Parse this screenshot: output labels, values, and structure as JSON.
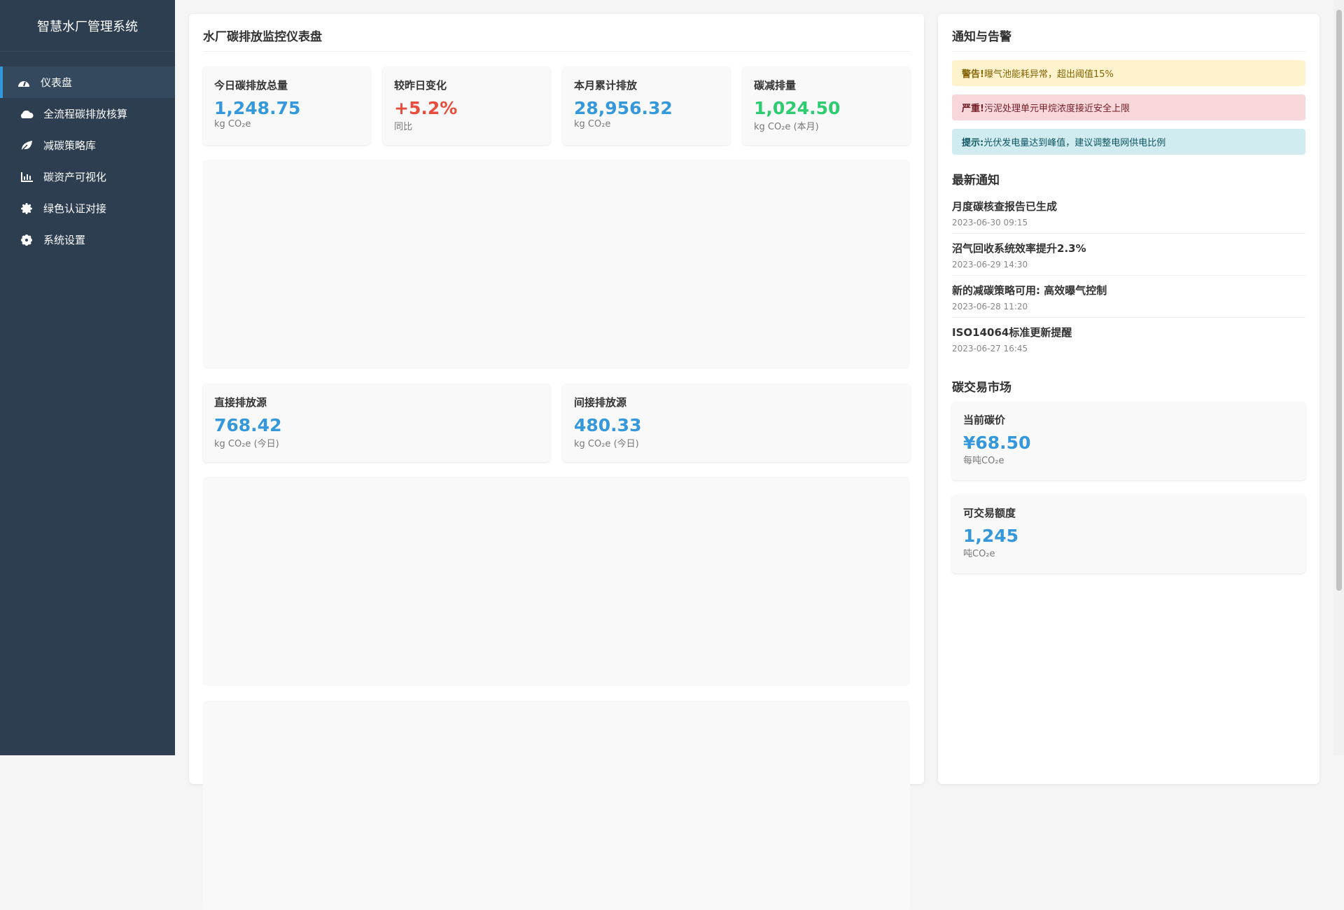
{
  "sidebar": {
    "title": "智慧水厂管理系统",
    "items": [
      {
        "label": "仪表盘",
        "icon": "dashboard-icon",
        "active": true
      },
      {
        "label": "全流程碳排放核算",
        "icon": "cloud-icon"
      },
      {
        "label": "减碳策略库",
        "icon": "leaf-icon"
      },
      {
        "label": "碳资产可视化",
        "icon": "bar-chart-icon"
      },
      {
        "label": "绿色认证对接",
        "icon": "certificate-icon"
      },
      {
        "label": "系统设置",
        "icon": "gear-icon"
      }
    ]
  },
  "main": {
    "title": "水厂碳排放监控仪表盘",
    "stats": [
      {
        "label": "今日碳排放总量",
        "value": "1,248.75",
        "unit": "kg CO₂e",
        "color": "#3498db"
      },
      {
        "label": "较昨日变化",
        "value": "+5.2%",
        "unit": "同比",
        "color": "#e74c3c"
      },
      {
        "label": "本月累计排放",
        "value": "28,956.32",
        "unit": "kg CO₂e",
        "color": "#3498db"
      },
      {
        "label": "碳减排量",
        "value": "1,024.50",
        "unit": "kg CO₂e (本月)",
        "color": "#2ecc71"
      }
    ],
    "sources": [
      {
        "label": "直接排放源",
        "value": "768.42",
        "unit": "kg CO₂e (今日)"
      },
      {
        "label": "间接排放源",
        "value": "480.33",
        "unit": "kg CO₂e (今日)"
      }
    ]
  },
  "right": {
    "title": "通知与告警",
    "alerts": [
      {
        "strong": "警告!",
        "text": " 曝气池能耗异常，超出阈值15%"
      },
      {
        "strong": "严重!",
        "text": " 污泥处理单元甲烷浓度接近安全上限"
      },
      {
        "strong": "提示:",
        "text": " 光伏发电量达到峰值，建议调整电网供电比例"
      }
    ],
    "notices_title": "最新通知",
    "notices": [
      {
        "title": "月度碳核查报告已生成",
        "time": "2023-06-30 09:15"
      },
      {
        "title": "沼气回收系统效率提升2.3%",
        "time": "2023-06-29 14:30"
      },
      {
        "title": "新的减碳策略可用: 高效曝气控制",
        "time": "2023-06-28 11:20"
      },
      {
        "title": "ISO14064标准更新提醒",
        "time": "2023-06-27 16:45"
      }
    ],
    "market_title": "碳交易市场",
    "market": [
      {
        "label": "当前碳价",
        "value": "¥68.50",
        "unit": "每吨CO₂e"
      },
      {
        "label": "可交易额度",
        "value": "1,245",
        "unit": "吨CO₂e"
      }
    ]
  }
}
